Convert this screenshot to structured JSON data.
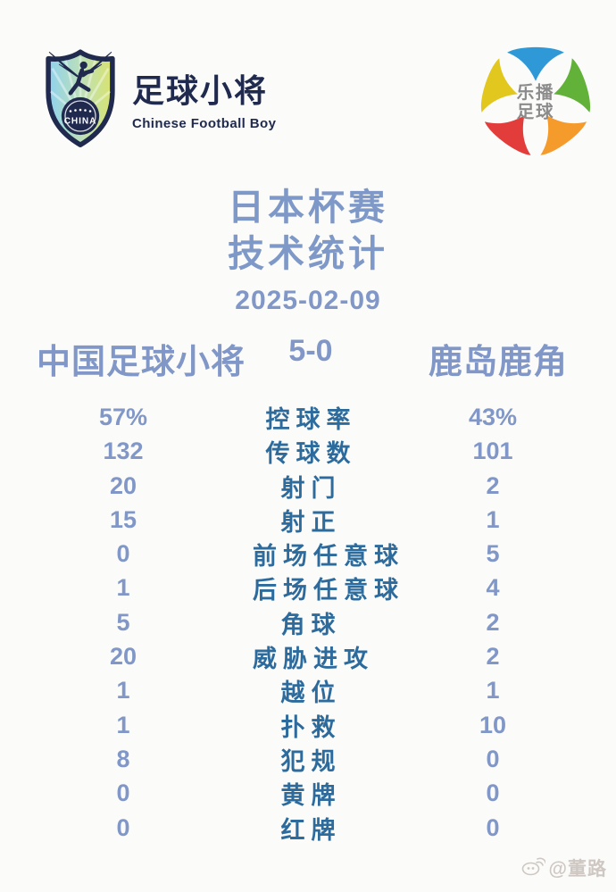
{
  "brand": {
    "shield_country": "CHINA",
    "name_cn": "足球小将",
    "name_en": "Chinese Football Boy"
  },
  "partner": {
    "name_line1": "乐播",
    "name_line2": "足球"
  },
  "title": {
    "line1": "日本杯赛",
    "line2": "技术统计",
    "date": "2025-02-09"
  },
  "match": {
    "home_team": "中国足球小将",
    "score": "5-0",
    "away_team": "鹿岛鹿角"
  },
  "stats": [
    {
      "label": "控球率",
      "home": "57%",
      "away": "43%"
    },
    {
      "label": "传球数",
      "home": "132",
      "away": "101"
    },
    {
      "label": "射门",
      "home": "20",
      "away": "2"
    },
    {
      "label": "射正",
      "home": "15",
      "away": "1"
    },
    {
      "label": "前场任意球",
      "home": "0",
      "away": "5"
    },
    {
      "label": "后场任意球",
      "home": "1",
      "away": "4"
    },
    {
      "label": "角球",
      "home": "5",
      "away": "2"
    },
    {
      "label": "威胁进攻",
      "home": "20",
      "away": "2"
    },
    {
      "label": "越位",
      "home": "1",
      "away": "1"
    },
    {
      "label": "扑救",
      "home": "1",
      "away": "10"
    },
    {
      "label": "犯规",
      "home": "8",
      "away": "0"
    },
    {
      "label": "黄牌",
      "home": "0",
      "away": "0"
    },
    {
      "label": "红牌",
      "home": "0",
      "away": "0"
    }
  ],
  "watermark": {
    "handle": "@董路"
  },
  "icons": {
    "brand_logo": "winged-player-shield-icon",
    "partner_logo": "five-petal-football-icon",
    "watermark_icon": "weibo-icon"
  },
  "colors": {
    "background": "#fbfbfa",
    "number_blue": "#8097c7",
    "title_blue": "#7e98c8",
    "label_blue": "#2d6b9d",
    "brand_navy": "#202a4e",
    "petal_blue": "#2f99d8",
    "petal_green": "#62b23a",
    "petal_orange": "#f59b2c",
    "petal_red": "#e23d3a",
    "petal_yellow": "#e2c71e",
    "watermark_gray": "#cfc8c2"
  },
  "chart_data": {
    "type": "table",
    "title": "日本杯赛 技术统计",
    "date": "2025-02-09",
    "score": "5-0",
    "categories": [
      "控球率",
      "传球数",
      "射门",
      "射正",
      "前场任意球",
      "后场任意球",
      "角球",
      "威胁进攻",
      "越位",
      "扑救",
      "犯规",
      "黄牌",
      "红牌"
    ],
    "series": [
      {
        "name": "中国足球小将",
        "values": [
          "57%",
          132,
          20,
          15,
          0,
          1,
          5,
          20,
          1,
          1,
          8,
          0,
          0
        ]
      },
      {
        "name": "鹿岛鹿角",
        "values": [
          "43%",
          101,
          2,
          1,
          5,
          4,
          2,
          2,
          1,
          10,
          0,
          0,
          0
        ]
      }
    ],
    "layout_hints": {
      "home_column": "left",
      "away_column": "right",
      "labels": "center"
    }
  }
}
